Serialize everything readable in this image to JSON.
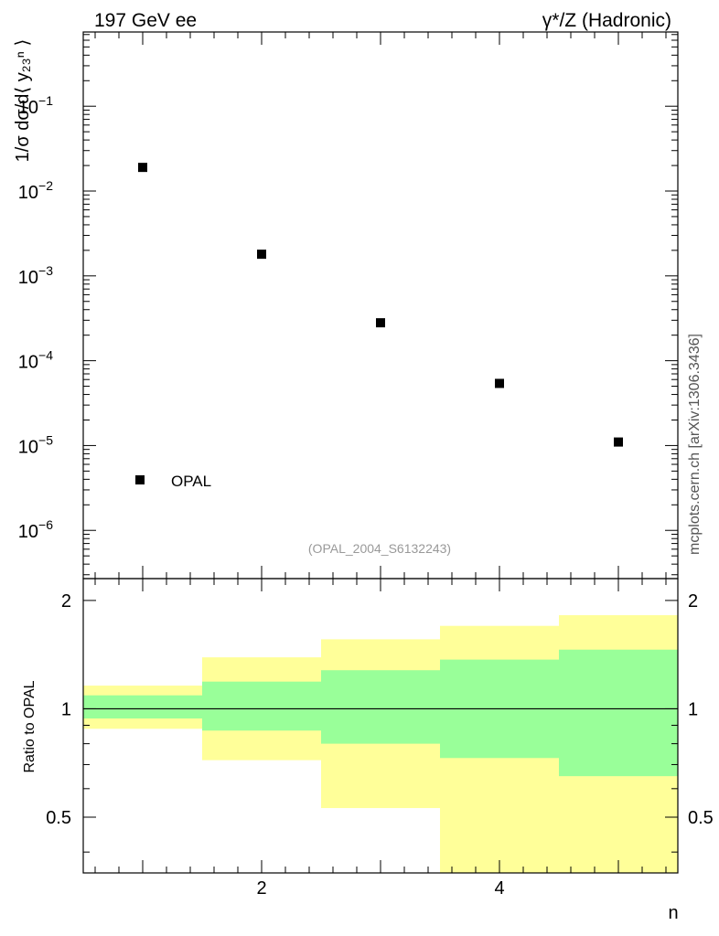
{
  "header": {
    "left_label": "197 GeV ee",
    "right_label": "γ*/Z (Hadronic)"
  },
  "side_label": "mcplots.cern.ch [arXiv:1306.3436]",
  "analysis_label": "(OPAL_2004_S6132243)",
  "chart_data": [
    {
      "type": "scatter",
      "title": "",
      "xlabel": "n",
      "ylabel": "1/σ dσ/d⟨ y₂₃ⁿ ⟩",
      "yscale": "log",
      "xlim": [
        0.5,
        5.5
      ],
      "ylim": [
        2.7e-07,
        0.75
      ],
      "x_ticks": [
        2,
        4
      ],
      "y_tick_exponents": [
        -1,
        -2,
        -3,
        -4,
        -5,
        -6
      ],
      "legend": {
        "position": "bottom-left",
        "entries": [
          "OPAL"
        ]
      },
      "series": [
        {
          "name": "OPAL",
          "x": [
            1,
            2,
            3,
            4,
            5
          ],
          "y": [
            0.019,
            0.0018,
            0.00028,
            5.4e-05,
            1.1e-05
          ]
        }
      ]
    },
    {
      "type": "area",
      "title": "",
      "xlabel": "n",
      "ylabel": "Ratio to OPAL",
      "yscale": "log",
      "xlim": [
        0.5,
        5.5
      ],
      "ylim": [
        0.35,
        2.3
      ],
      "x_ticks": [
        2,
        4
      ],
      "y_ticks": [
        0.5,
        1,
        2
      ],
      "y_tick_labels": [
        "0.5",
        "1",
        "2"
      ],
      "reference_line": 1,
      "bins": [
        {
          "lo": 0.5,
          "hi": 1.5,
          "inner": [
            0.94,
            1.09
          ],
          "outer": [
            0.88,
            1.16
          ]
        },
        {
          "lo": 1.5,
          "hi": 2.5,
          "inner": [
            0.87,
            1.19
          ],
          "outer": [
            0.72,
            1.39
          ]
        },
        {
          "lo": 2.5,
          "hi": 3.5,
          "inner": [
            0.8,
            1.28
          ],
          "outer": [
            0.53,
            1.56
          ]
        },
        {
          "lo": 3.5,
          "hi": 4.5,
          "inner": [
            0.73,
            1.37
          ],
          "outer": [
            0.33,
            1.7
          ]
        },
        {
          "lo": 4.5,
          "hi": 5.5,
          "inner": [
            0.65,
            1.46
          ],
          "outer": [
            0.33,
            1.82
          ]
        }
      ],
      "colors": {
        "inner": "#99ff99",
        "outer": "#ffff99"
      }
    }
  ]
}
